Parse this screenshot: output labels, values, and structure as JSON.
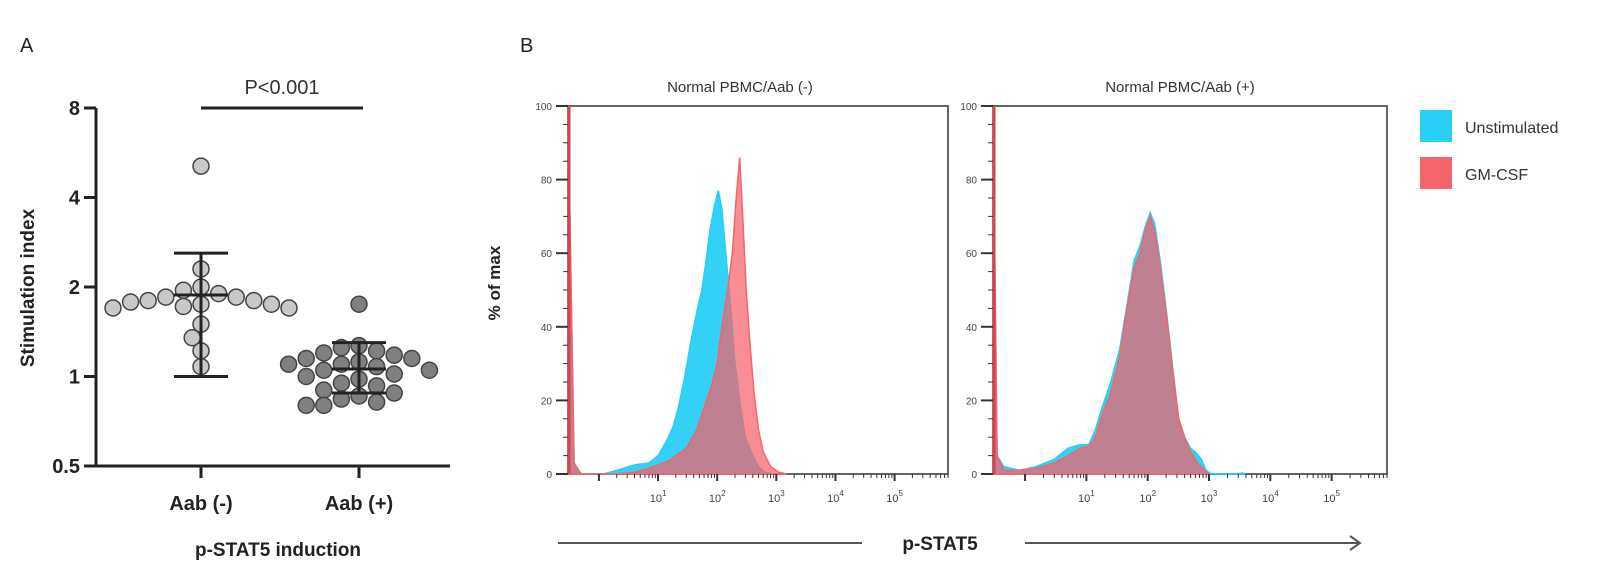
{
  "chart_data": [
    {
      "panel": "A",
      "type": "scatter",
      "title": "",
      "xlabel": "p-STAT5 induction",
      "ylabel": "Stimulation index",
      "yscale": "log2",
      "ylim": [
        0.5,
        8
      ],
      "yticks": [
        "0.5",
        "1",
        "2",
        "4",
        "8"
      ],
      "categories": [
        "Aab (-)",
        "Aab (+)"
      ],
      "annotation": "P<0.001",
      "series": [
        {
          "name": "Aab (-)",
          "color": "#c8c8c8",
          "values": [
            5.1,
            2.3,
            2.0,
            1.95,
            1.9,
            1.85,
            1.85,
            1.8,
            1.8,
            1.78,
            1.75,
            1.75,
            1.72,
            1.7,
            1.7,
            1.5,
            1.35,
            1.22,
            1.08
          ],
          "mean": 1.88,
          "error_upper": 2.6,
          "error_lower": 1.0
        },
        {
          "name": "Aab (+)",
          "color": "#808080",
          "values": [
            1.75,
            1.27,
            1.25,
            1.22,
            1.2,
            1.18,
            1.15,
            1.15,
            1.12,
            1.1,
            1.1,
            1.08,
            1.05,
            1.05,
            1.02,
            1.0,
            0.98,
            0.95,
            0.93,
            0.9,
            0.88,
            0.86,
            0.84,
            0.82,
            0.8,
            0.8
          ],
          "mean": 1.06,
          "error_upper": 1.3,
          "error_lower": 0.88
        }
      ]
    },
    {
      "panel": "B",
      "type": "area",
      "title": "Normal PBMC/Aab (-)",
      "xlabel": "p-STAT5",
      "ylabel": "% of max",
      "xscale": "log10",
      "xlim": [
        0.3,
        800000
      ],
      "ylim": [
        0,
        100
      ],
      "yticks": [
        "0",
        "20",
        "40",
        "60",
        "80",
        "100"
      ],
      "xticks": [
        "10^1",
        "10^2",
        "10^3",
        "10^4",
        "10^5"
      ],
      "series": [
        {
          "name": "Unstimulated",
          "color": "#29cff5",
          "x": [
            0.3,
            0.38,
            0.5,
            1.2,
            2,
            4,
            7,
            10,
            14,
            18,
            22,
            28,
            35,
            45,
            55,
            65,
            75,
            90,
            105,
            120,
            140,
            170,
            200,
            250,
            300,
            400,
            500,
            650,
            900
          ],
          "y": [
            100,
            3,
            0,
            0,
            1,
            2.5,
            3,
            5,
            9,
            13,
            18,
            26,
            35,
            44,
            50,
            58,
            66,
            73,
            77,
            72,
            60,
            45,
            30,
            18,
            10,
            5,
            2,
            0.5,
            0
          ]
        },
        {
          "name": "GM-CSF",
          "color": "#f5636b",
          "x": [
            0.3,
            0.38,
            0.5,
            1.2,
            2,
            4,
            7,
            10,
            15,
            20,
            30,
            45,
            60,
            80,
            100,
            120,
            150,
            180,
            210,
            240,
            270,
            310,
            360,
            420,
            500,
            600,
            800,
            1100,
            1500
          ],
          "y": [
            100,
            3,
            0,
            0,
            0,
            0.5,
            1.5,
            2.5,
            3.5,
            5,
            7,
            12,
            18,
            24,
            30,
            40,
            50,
            60,
            75,
            86,
            70,
            50,
            35,
            22,
            12,
            6,
            2,
            0.5,
            0
          ]
        }
      ]
    },
    {
      "panel": "B",
      "type": "area",
      "title": "Normal PBMC/Aab (+)",
      "xlabel": "p-STAT5",
      "ylabel": "% of max",
      "xscale": "log10",
      "xlim": [
        0.3,
        800000
      ],
      "ylim": [
        0,
        100
      ],
      "yticks": [
        "0",
        "20",
        "40",
        "60",
        "80",
        "100"
      ],
      "xticks": [
        "10^1",
        "10^2",
        "10^3",
        "10^4",
        "10^5"
      ],
      "series": [
        {
          "name": "Unstimulated",
          "color": "#29cff5",
          "x": [
            0.3,
            0.35,
            0.45,
            0.8,
            1.5,
            3,
            5,
            8,
            11,
            14,
            18,
            25,
            35,
            45,
            60,
            75,
            90,
            110,
            130,
            160,
            200,
            260,
            320,
            400,
            500,
            600,
            750,
            900,
            1100,
            3000,
            3500,
            4000
          ],
          "y": [
            100,
            5,
            2,
            1,
            2,
            4,
            7,
            8,
            8,
            12,
            18,
            25,
            34,
            45,
            58,
            62,
            67,
            71,
            68,
            58,
            45,
            28,
            15,
            10,
            7,
            6,
            4,
            1,
            0,
            0,
            0.3,
            0
          ]
        },
        {
          "name": "GM-CSF",
          "color": "#f5636b",
          "x": [
            0.3,
            0.35,
            0.45,
            0.8,
            1.5,
            3,
            5,
            8,
            11,
            14,
            18,
            25,
            35,
            45,
            60,
            75,
            90,
            110,
            130,
            160,
            200,
            260,
            320,
            400,
            500,
            650,
            850,
            1000
          ],
          "y": [
            100,
            5,
            1,
            1,
            1.5,
            3,
            5,
            7,
            7.5,
            10,
            16,
            22,
            32,
            44,
            56,
            60,
            66,
            70,
            66,
            56,
            44,
            27,
            15,
            10,
            6,
            3,
            1,
            0
          ]
        }
      ]
    }
  ],
  "panels": {
    "a_label": "A",
    "b_label": "B"
  },
  "legend": [
    {
      "label": "Unstimulated",
      "color": "#29cff5"
    },
    {
      "label": "GM-CSF",
      "color": "#f5636b"
    }
  ],
  "overlap_color": "#cc5060",
  "shared_xlabel": "p-STAT5"
}
